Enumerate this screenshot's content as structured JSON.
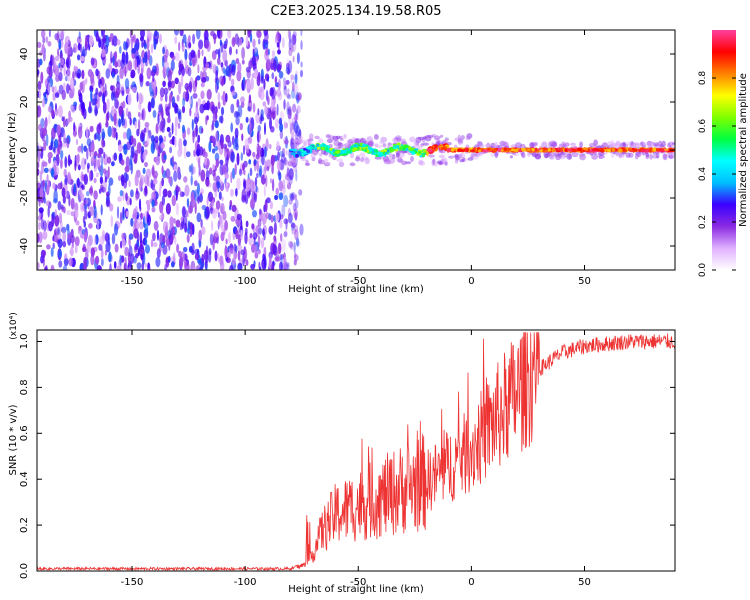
{
  "title": "C2E3.2025.134.19.58.R05",
  "chart_data": [
    {
      "type": "heatmap",
      "xlabel": "Height of straight line (km)",
      "ylabel": "Frequency (Hz)",
      "xlim": [
        -192,
        90
      ],
      "ylim": [
        -50,
        50
      ],
      "x_ticks": [
        -150,
        -100,
        -50,
        0,
        50
      ],
      "y_ticks": [
        -40,
        -20,
        0,
        20,
        40
      ],
      "noise_region_x": [
        -192,
        -78
      ],
      "signal_line_frequency_hz": 0,
      "colorbar": {
        "label": "Normalized spectral amplitude",
        "range": [
          0,
          1
        ],
        "ticks": [
          "0.0",
          "0.2",
          "0.4",
          "0.6",
          "0.8"
        ],
        "colormap": [
          "#ffffff",
          "#e0b0ff",
          "#8a2be2",
          "#3a00ff",
          "#00bfff",
          "#00ffff",
          "#00ff40",
          "#80ff00",
          "#ffff00",
          "#ff8000",
          "#ff0000",
          "#ff40a0"
        ]
      }
    },
    {
      "type": "line",
      "xlabel": "Height of straight line (km)",
      "ylabel": "SNR (10 * v/v)",
      "y_multiplier": "(x10⁴)",
      "xlim": [
        -192,
        90
      ],
      "ylim": [
        0,
        1.05
      ],
      "x_ticks": [
        -150,
        -100,
        -50,
        0,
        50
      ],
      "y_ticks": [
        "0.0",
        "0.2",
        "0.4",
        "0.6",
        "0.8",
        "1.0"
      ],
      "color": "#ee3333",
      "envelope": {
        "x": [
          -192,
          -100,
          -80,
          -72,
          -66,
          -60,
          -50,
          -40,
          -30,
          -20,
          -10,
          0,
          10,
          20,
          30,
          40,
          50,
          60,
          70,
          80,
          90
        ],
        "y": [
          0.01,
          0.01,
          0.01,
          0.03,
          0.17,
          0.24,
          0.28,
          0.31,
          0.35,
          0.38,
          0.45,
          0.52,
          0.64,
          0.76,
          0.88,
          0.95,
          0.98,
          0.99,
          1.0,
          1.0,
          1.0
        ]
      }
    }
  ]
}
